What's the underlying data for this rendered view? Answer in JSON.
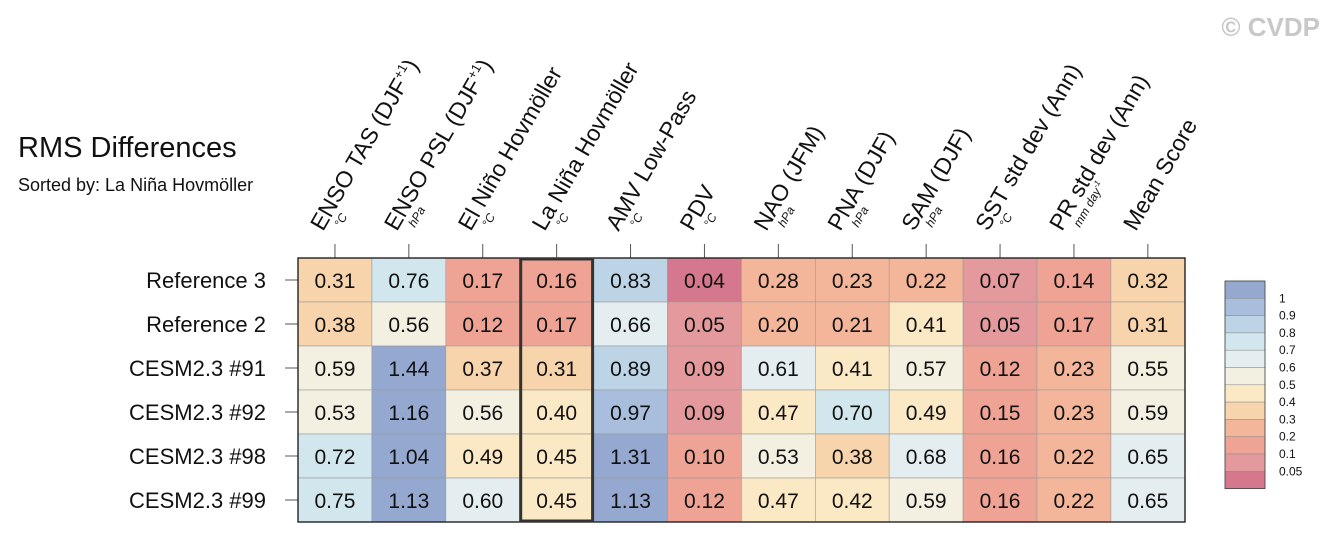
{
  "chart_data": {
    "type": "heatmap",
    "title": "RMS Differences",
    "subtitle": "Sorted by: La Niña Hovmöller",
    "watermark": "© CVDP",
    "columns": [
      {
        "name": "ENSO TAS (DJF",
        "sup": "+1",
        "close": ")",
        "unit": "°C"
      },
      {
        "name": "ENSO PSL (DJF",
        "sup": "+1",
        "close": ")",
        "unit": "hPa"
      },
      {
        "name": "El Niño Hovmöller",
        "sup": "",
        "close": "",
        "unit": "°C"
      },
      {
        "name": "La Niña Hovmöller",
        "sup": "",
        "close": "",
        "unit": "°C"
      },
      {
        "name": "AMV Low-Pass",
        "sup": "",
        "close": "",
        "unit": "°C"
      },
      {
        "name": "PDV",
        "sup": "",
        "close": "",
        "unit": "°C"
      },
      {
        "name": "NAO (JFM)",
        "sup": "",
        "close": "",
        "unit": "hPa"
      },
      {
        "name": "PNA (DJF)",
        "sup": "",
        "close": "",
        "unit": "hPa"
      },
      {
        "name": "SAM (DJF)",
        "sup": "",
        "close": "",
        "unit": "hPa"
      },
      {
        "name": "SST std dev (Ann)",
        "sup": "",
        "close": "",
        "unit": "°C"
      },
      {
        "name": "PR std dev (Ann)",
        "sup": "",
        "close": "",
        "unit": "mm day",
        "unit_sup": "-1"
      },
      {
        "name": "Mean Score",
        "sup": "",
        "close": "",
        "unit": ""
      }
    ],
    "rows": [
      {
        "name": "Reference 3",
        "values": [
          0.31,
          0.76,
          0.17,
          0.16,
          0.83,
          0.04,
          0.28,
          0.23,
          0.22,
          0.07,
          0.14,
          0.32
        ]
      },
      {
        "name": "Reference 2",
        "values": [
          0.38,
          0.56,
          0.12,
          0.17,
          0.66,
          0.05,
          0.2,
          0.21,
          0.41,
          0.05,
          0.17,
          0.31
        ]
      },
      {
        "name": "CESM2.3 #91",
        "values": [
          0.59,
          1.44,
          0.37,
          0.31,
          0.89,
          0.09,
          0.61,
          0.41,
          0.57,
          0.12,
          0.23,
          0.55
        ]
      },
      {
        "name": "CESM2.3 #92",
        "values": [
          0.53,
          1.16,
          0.56,
          0.4,
          0.97,
          0.09,
          0.47,
          0.7,
          0.49,
          0.15,
          0.23,
          0.59
        ]
      },
      {
        "name": "CESM2.3 #98",
        "values": [
          0.72,
          1.04,
          0.49,
          0.45,
          1.31,
          0.1,
          0.53,
          0.38,
          0.68,
          0.16,
          0.22,
          0.65
        ]
      },
      {
        "name": "CESM2.3 #99",
        "values": [
          0.75,
          1.13,
          0.6,
          0.45,
          1.13,
          0.12,
          0.47,
          0.42,
          0.59,
          0.16,
          0.22,
          0.65
        ]
      }
    ],
    "sorted_column": "La Niña Hovmöller",
    "colorbar": {
      "levels": [
        "1",
        "0.9",
        "0.8",
        "0.7",
        "0.6",
        "0.5",
        "0.4",
        "0.3",
        "0.2",
        "0.1",
        "0.05"
      ],
      "colors": [
        "#95a8d0",
        "#a8bedc",
        "#bcd4e6",
        "#d2e6ee",
        "#e4eef0",
        "#f3f0e2",
        "#fbe8c4",
        "#f8d4ac",
        "#f4b69a",
        "#eea394",
        "#e49a9c",
        "#d5788e"
      ]
    },
    "value_format": "2 decimals"
  }
}
